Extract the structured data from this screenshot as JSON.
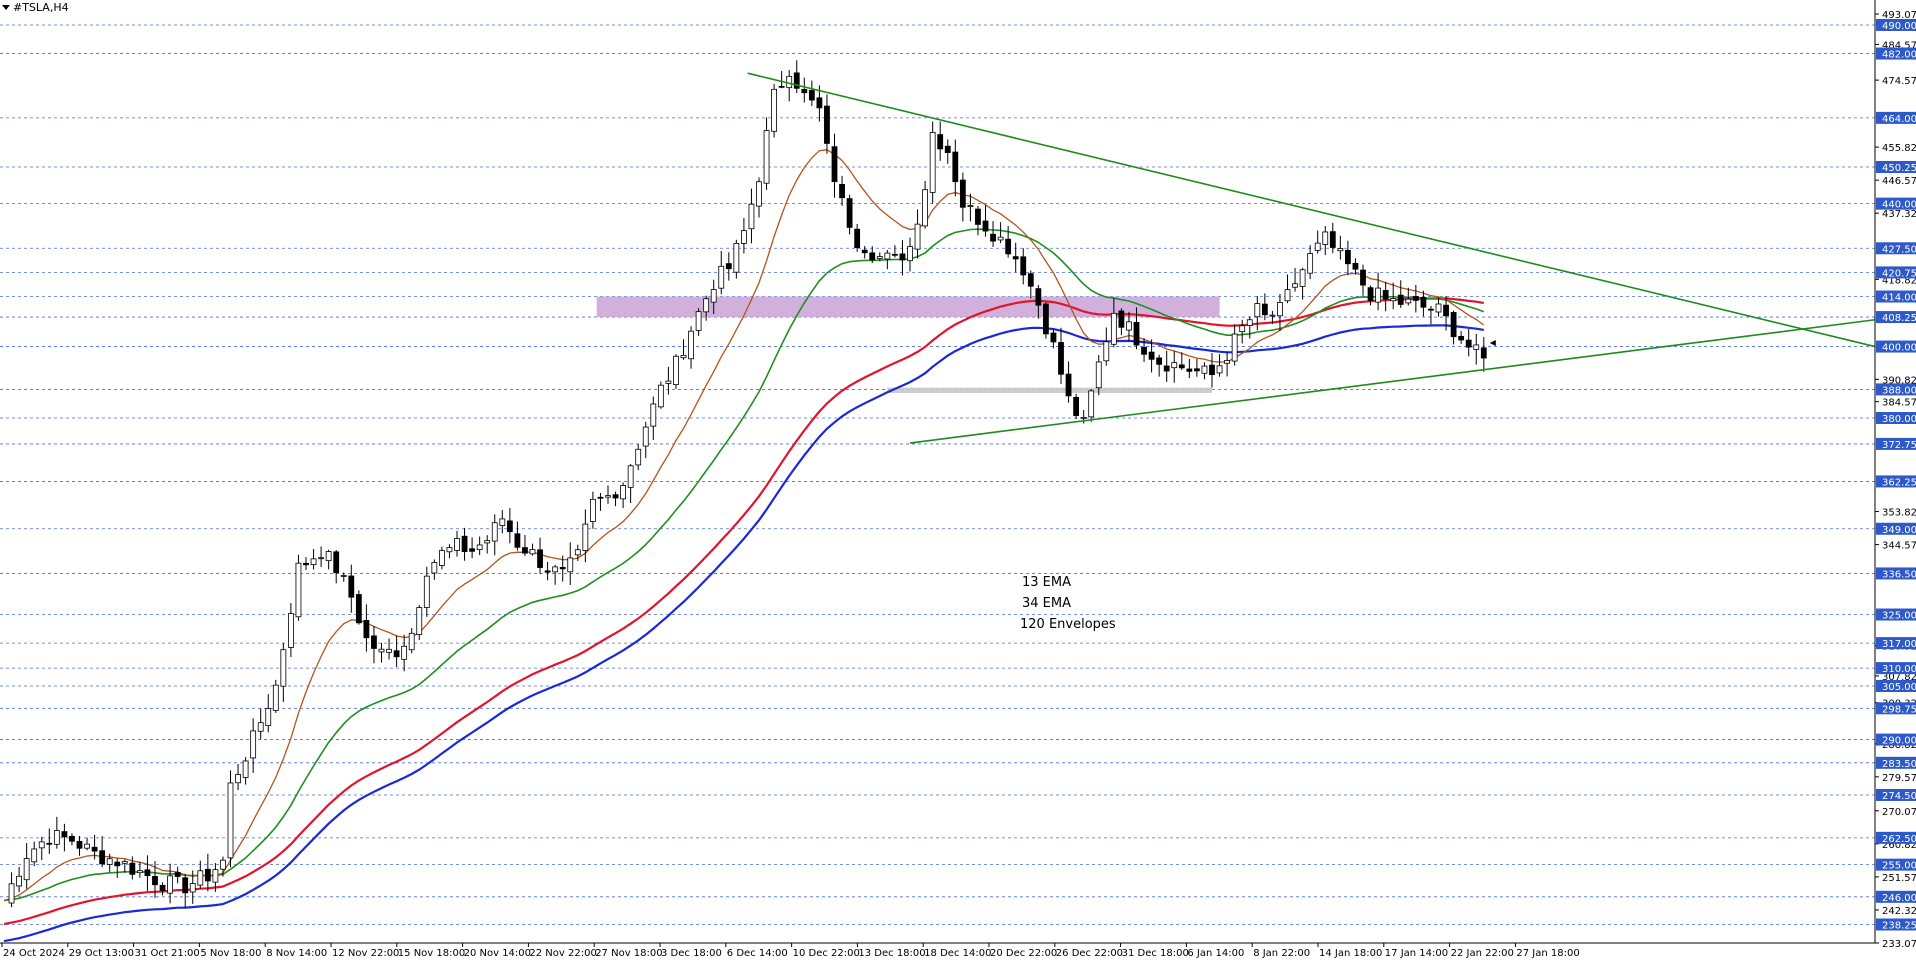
{
  "window": {
    "symbol": "#TSLA,H4"
  },
  "chart_data": {
    "type": "candlestick",
    "symbol": "#TSLA,H4",
    "ylim": [
      233.07,
      493.07
    ],
    "price_axis_labels": [
      "493.07",
      "484.57",
      "474.57",
      "455.82",
      "446.57",
      "437.32",
      "418.82",
      "390.82",
      "384.57",
      "353.82",
      "344.57",
      "316.32",
      "307.82",
      "300.32",
      "288.82",
      "279.57",
      "270.07",
      "260.82",
      "251.57",
      "242.32",
      "233.07"
    ],
    "horizontal_levels": [
      {
        "value": 490.0,
        "label": "490.00"
      },
      {
        "value": 482.0,
        "label": "482.00"
      },
      {
        "value": 464.0,
        "label": "464.00"
      },
      {
        "value": 450.25,
        "label": "450.25"
      },
      {
        "value": 440.0,
        "label": "440.00"
      },
      {
        "value": 427.5,
        "label": "427.50"
      },
      {
        "value": 420.75,
        "label": "420.75"
      },
      {
        "value": 414.0,
        "label": "414.00"
      },
      {
        "value": 408.25,
        "label": "408.25"
      },
      {
        "value": 400.0,
        "label": "400.00"
      },
      {
        "value": 388.0,
        "label": "388.00"
      },
      {
        "value": 380.0,
        "label": "380.00"
      },
      {
        "value": 372.75,
        "label": "372.75"
      },
      {
        "value": 362.25,
        "label": "362.25"
      },
      {
        "value": 349.0,
        "label": "349.00"
      },
      {
        "value": 336.5,
        "label": "336.50"
      },
      {
        "value": 325.0,
        "label": "325.00"
      },
      {
        "value": 317.0,
        "label": "317.00"
      },
      {
        "value": 310.0,
        "label": "310.00"
      },
      {
        "value": 305.0,
        "label": "305.00"
      },
      {
        "value": 298.75,
        "label": "298.75"
      },
      {
        "value": 290.0,
        "label": "290.00"
      },
      {
        "value": 283.5,
        "label": "283.50"
      },
      {
        "value": 274.5,
        "label": "274.50"
      },
      {
        "value": 262.5,
        "label": "262.50"
      },
      {
        "value": 255.0,
        "label": "255.00"
      },
      {
        "value": 246.0,
        "label": "246.00"
      },
      {
        "value": 238.25,
        "label": "238.25"
      }
    ],
    "x_labels": [
      "24 Oct 2024",
      "29 Oct 13:00",
      "31 Oct 21:00",
      "5 Nov 18:00",
      "8 Nov 14:00",
      "12 Nov 22:00",
      "15 Nov 18:00",
      "20 Nov 14:00",
      "22 Nov 22:00",
      "27 Nov 18:00",
      "3 Dec 18:00",
      "6 Dec 14:00",
      "10 Dec 22:00",
      "13 Dec 18:00",
      "18 Dec 14:00",
      "20 Dec 22:00",
      "26 Dec 22:00",
      "31 Dec 18:00",
      "6 Jan 14:00",
      "8 Jan 22:00",
      "14 Jan 18:00",
      "17 Jan 14:00",
      "22 Jan 22:00",
      "27 Jan 18:00"
    ],
    "close_path": [
      [
        0,
        245
      ],
      [
        3,
        258
      ],
      [
        6,
        263
      ],
      [
        9,
        262
      ],
      [
        12,
        258
      ],
      [
        15,
        256
      ],
      [
        18,
        253
      ],
      [
        21,
        250
      ],
      [
        24,
        249
      ],
      [
        27,
        252
      ],
      [
        29,
        256
      ],
      [
        30,
        277
      ],
      [
        33,
        290
      ],
      [
        36,
        305
      ],
      [
        39,
        338
      ],
      [
        42,
        343
      ],
      [
        44,
        338
      ],
      [
        46,
        330
      ],
      [
        48,
        318
      ],
      [
        50,
        314
      ],
      [
        52,
        315
      ],
      [
        54,
        320
      ],
      [
        56,
        338
      ],
      [
        58,
        342
      ],
      [
        60,
        344
      ],
      [
        62,
        343
      ],
      [
        64,
        346
      ],
      [
        66,
        352
      ],
      [
        68,
        345
      ],
      [
        70,
        342
      ],
      [
        72,
        338
      ],
      [
        74,
        336
      ],
      [
        76,
        341
      ],
      [
        78,
        356
      ],
      [
        80,
        358
      ],
      [
        82,
        362
      ],
      [
        85,
        378
      ],
      [
        87,
        388
      ],
      [
        89,
        395
      ],
      [
        91,
        405
      ],
      [
        94,
        418
      ],
      [
        96,
        422
      ],
      [
        98,
        432
      ],
      [
        100,
        448
      ],
      [
        102,
        470
      ],
      [
        104,
        478
      ],
      [
        106,
        470
      ],
      [
        108,
        466
      ],
      [
        109,
        455
      ],
      [
        111,
        440
      ],
      [
        113,
        430
      ],
      [
        116,
        425
      ],
      [
        118,
        424
      ],
      [
        120,
        428
      ],
      [
        122,
        445
      ],
      [
        123,
        460
      ],
      [
        125,
        455
      ],
      [
        127,
        440
      ],
      [
        129,
        436
      ],
      [
        131,
        432
      ],
      [
        133,
        428
      ],
      [
        135,
        422
      ],
      [
        137,
        412
      ],
      [
        139,
        400
      ],
      [
        141,
        385
      ],
      [
        143,
        378
      ],
      [
        145,
        395
      ],
      [
        147,
        410
      ],
      [
        149,
        405
      ],
      [
        151,
        400
      ],
      [
        153,
        396
      ],
      [
        155,
        395
      ],
      [
        158,
        393
      ],
      [
        160,
        392
      ],
      [
        162,
        398
      ],
      [
        164,
        405
      ],
      [
        166,
        410
      ],
      [
        167,
        408
      ],
      [
        169,
        410
      ],
      [
        171,
        418
      ],
      [
        173,
        425
      ],
      [
        175,
        430
      ],
      [
        177,
        425
      ],
      [
        179,
        420
      ],
      [
        181,
        415
      ],
      [
        183,
        413
      ],
      [
        186,
        412
      ],
      [
        188,
        411
      ],
      [
        190,
        410
      ],
      [
        192,
        405
      ],
      [
        194,
        400
      ],
      [
        196,
        396
      ]
    ],
    "indicators": [
      {
        "name": "13 EMA",
        "color": "#b5541c"
      },
      {
        "name": "34 EMA",
        "color": "#1e8f1e"
      },
      {
        "name": "120 Envelopes",
        "color": "#e0152d"
      }
    ],
    "envelope_lower_color": "#1a28d8",
    "zones": [
      {
        "from": 408.25,
        "to": 414.0,
        "color": "#c9a3d6"
      },
      {
        "from": 387.0,
        "to": 388.5,
        "color": "#c8c8c8"
      }
    ],
    "trendlines": [
      {
        "name": "descending",
        "color": "#1e8a1e"
      },
      {
        "name": "ascending",
        "color": "#1e8a1e"
      }
    ],
    "grid": "horizontal dashed at marked levels"
  }
}
